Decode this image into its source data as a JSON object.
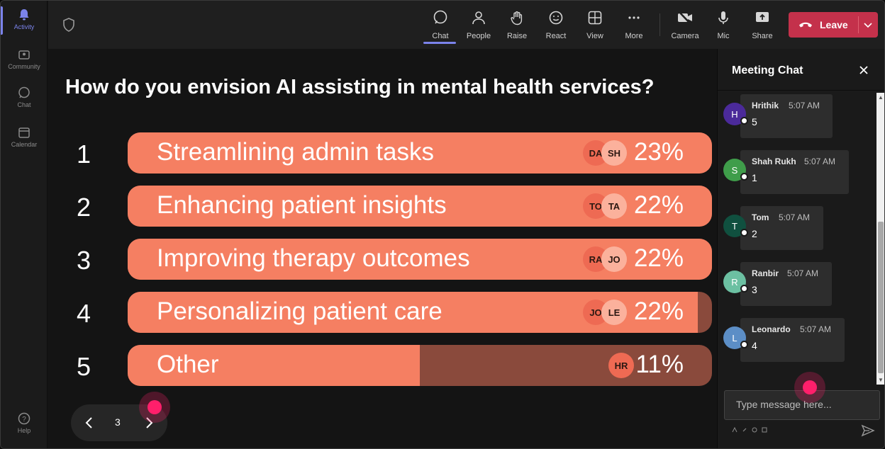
{
  "rail": {
    "items": [
      {
        "label": "Activity",
        "icon": "bell-icon",
        "active": true
      },
      {
        "label": "Community",
        "icon": "community-icon"
      },
      {
        "label": "Chat",
        "icon": "chat-icon"
      },
      {
        "label": "Calendar",
        "icon": "calendar-icon"
      }
    ],
    "help": {
      "label": "Help",
      "icon": "help-icon"
    }
  },
  "toolbar": {
    "chat": "Chat",
    "people": "People",
    "raise": "Raise",
    "react": "React",
    "view": "View",
    "more": "More",
    "camera": "Camera",
    "mic": "Mic",
    "share": "Share",
    "leave": "Leave"
  },
  "poll": {
    "question": "How do you envision AI assisting in mental health services?",
    "options": [
      {
        "num": "1",
        "label": "Streamlining admin tasks",
        "pct": "23%",
        "value": 0.23,
        "fill": 1.0,
        "avatars": [
          "DA",
          "SH"
        ]
      },
      {
        "num": "2",
        "label": "Enhancing patient insights",
        "pct": "22%",
        "value": 0.22,
        "fill": 1.0,
        "avatars": [
          "TO",
          "TA"
        ]
      },
      {
        "num": "3",
        "label": "Improving therapy outcomes",
        "pct": "22%",
        "value": 0.22,
        "fill": 1.0,
        "avatars": [
          "RA",
          "JO"
        ]
      },
      {
        "num": "4",
        "label": "Personalizing patient care",
        "pct": "22%",
        "value": 0.22,
        "fill": 0.976,
        "avatars": [
          "JO",
          "LE"
        ]
      },
      {
        "num": "5",
        "label": "Other",
        "pct": "11%",
        "value": 0.11,
        "fill": 0.5,
        "avatars": [
          "HR"
        ]
      }
    ],
    "colors": {
      "fill": "#f57f62",
      "track": "#8a4a3c"
    }
  },
  "pager": {
    "page": "3"
  },
  "chat": {
    "title": "Meeting Chat",
    "messages": [
      {
        "initial": "H",
        "name": "Hrithik",
        "time": "5:07 AM",
        "body": "5",
        "color": "#4b2a9a"
      },
      {
        "initial": "S",
        "name": "Shah Rukh",
        "time": "5:07 AM",
        "body": "1",
        "color": "#3f9d4a"
      },
      {
        "initial": "T",
        "name": "Tom",
        "time": "5:07 AM",
        "body": "2",
        "color": "#10503f"
      },
      {
        "initial": "R",
        "name": "Ranbir",
        "time": "5:07 AM",
        "body": "3",
        "color": "#6cc0a2"
      },
      {
        "initial": "L",
        "name": "Leonardo",
        "time": "5:07 AM",
        "body": "4",
        "color": "#5c8ec6"
      }
    ],
    "input_placeholder": "Type message here..."
  }
}
